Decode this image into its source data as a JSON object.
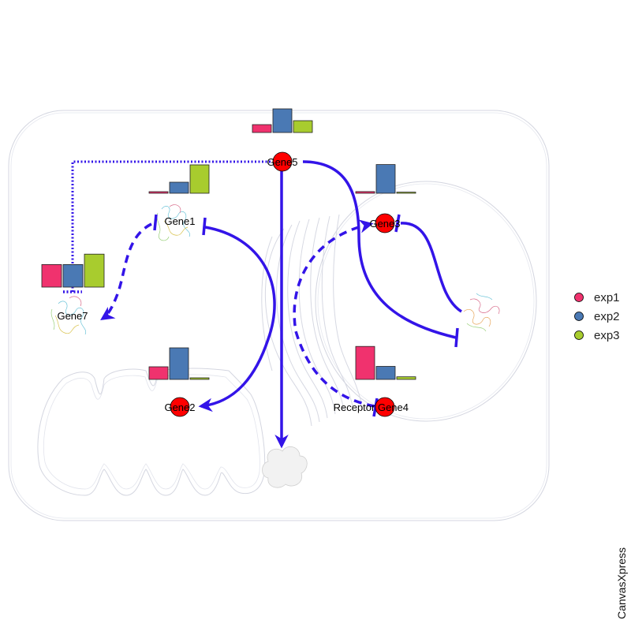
{
  "genes": [
    {
      "id": "gene5",
      "label": "Gene5",
      "expression": [
        1,
        3,
        1.5
      ]
    },
    {
      "id": "gene1",
      "label": "Gene1",
      "expression": [
        0.2,
        1.4,
        3.6
      ]
    },
    {
      "id": "gene3",
      "label": "Gene3",
      "expression": [
        0.15,
        2.6,
        0.1
      ]
    },
    {
      "id": "gene7",
      "label": "Gene7",
      "expression": [
        2.6,
        2.6,
        3.8
      ]
    },
    {
      "id": "gene2",
      "label": "Gene2",
      "expression": [
        1.6,
        4.0,
        0.2
      ]
    },
    {
      "id": "gene4",
      "label": "Receptor Gene4",
      "expression": [
        3.8,
        1.5,
        0.3
      ]
    }
  ],
  "legend": [
    {
      "name": "exp1",
      "color": "#f0326e"
    },
    {
      "name": "exp2",
      "color": "#4a79b4"
    },
    {
      "name": "exp3",
      "color": "#a8cc2e"
    }
  ],
  "colors": {
    "node_fill": "#ff0000",
    "edge": "#3314e8",
    "membrane": "#d4d6e0"
  },
  "watermark": "CanvasXpress"
}
